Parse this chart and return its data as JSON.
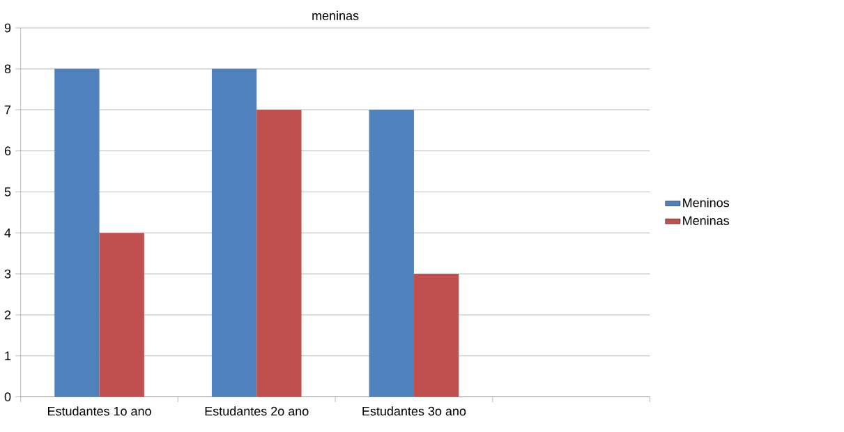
{
  "chart_data": {
    "type": "bar",
    "title": "meninas",
    "categories": [
      "Estudantes 1o ano",
      "Estudantes 2o ano",
      "Estudantes 3o ano",
      null
    ],
    "series": [
      {
        "name": "Meninos",
        "color": "#4f81bd",
        "values": [
          8,
          8,
          7,
          null
        ]
      },
      {
        "name": "Meninas",
        "color": "#c0504d",
        "values": [
          4,
          7,
          3,
          null
        ]
      }
    ],
    "ylim": [
      0,
      9
    ],
    "yticks": [
      0,
      1,
      2,
      3,
      4,
      5,
      6,
      7,
      8,
      9
    ],
    "grid": "y",
    "legend": "right"
  }
}
